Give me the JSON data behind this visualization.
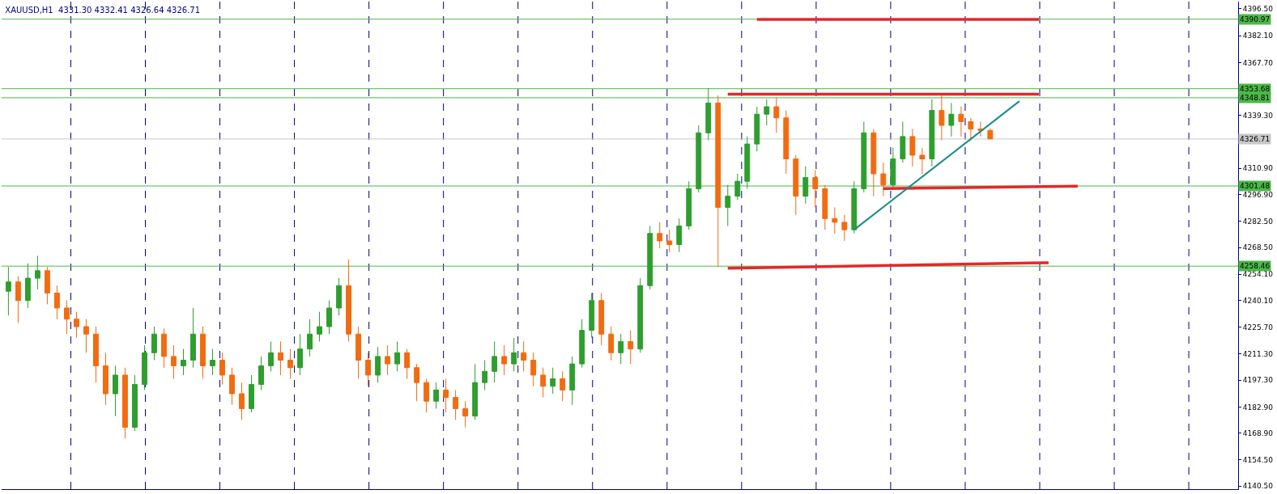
{
  "chart_data": {
    "type": "candlestick",
    "title": "XAUUSD,H1  4331.30 4332.41 4326.64 4326.71",
    "categories": [
      null,
      null,
      null,
      null,
      null,
      null,
      null,
      null,
      null,
      null,
      null,
      null,
      null,
      null,
      null,
      null,
      null,
      null,
      null,
      null,
      null,
      null,
      null,
      null,
      null,
      null,
      null,
      null,
      null,
      null,
      null,
      null,
      null,
      null,
      null,
      null,
      null,
      null,
      null,
      null,
      null,
      null,
      null,
      null,
      null,
      null,
      null,
      null,
      null,
      null,
      null,
      null,
      null,
      null,
      null,
      null,
      null,
      null,
      null,
      null,
      null,
      null,
      null,
      null,
      null,
      null,
      null,
      null,
      null,
      null,
      null,
      null,
      null,
      null,
      null,
      null,
      null,
      null,
      null,
      null,
      null,
      null,
      null,
      null,
      null,
      null,
      null,
      null,
      null,
      null,
      null,
      null,
      null,
      null,
      null,
      null,
      null,
      null,
      null,
      null,
      null,
      null,
      null,
      null,
      null,
      null,
      null,
      null,
      null,
      null,
      null,
      null,
      null,
      null,
      null,
      null,
      null,
      null,
      null,
      null,
      null,
      null,
      null,
      null,
      null,
      null,
      null
    ],
    "ohlc": [
      [
        4245,
        4258,
        4232,
        4250
      ],
      [
        4250,
        4253,
        4228,
        4240
      ],
      [
        4240,
        4260,
        4236,
        4252
      ],
      [
        4252,
        4264,
        4246,
        4256
      ],
      [
        4256,
        4258,
        4238,
        4244
      ],
      [
        4244,
        4248,
        4230,
        4236
      ],
      [
        4236,
        4240,
        4222,
        4230
      ],
      [
        4230,
        4234,
        4220,
        4226
      ],
      [
        4226,
        4230,
        4212,
        4222
      ],
      [
        4222,
        4226,
        4196,
        4205
      ],
      [
        4205,
        4212,
        4184,
        4190
      ],
      [
        4190,
        4205,
        4178,
        4200
      ],
      [
        4200,
        4204,
        4166,
        4172
      ],
      [
        4172,
        4200,
        4170,
        4195
      ],
      [
        4195,
        4216,
        4192,
        4212
      ],
      [
        4212,
        4226,
        4208,
        4222
      ],
      [
        4222,
        4225,
        4204,
        4210
      ],
      [
        4210,
        4216,
        4198,
        4205
      ],
      [
        4205,
        4214,
        4200,
        4208
      ],
      [
        4208,
        4236,
        4204,
        4222
      ],
      [
        4222,
        4226,
        4198,
        4205
      ],
      [
        4205,
        4214,
        4200,
        4208
      ],
      [
        4208,
        4212,
        4195,
        4200
      ],
      [
        4200,
        4204,
        4184,
        4190
      ],
      [
        4190,
        4196,
        4176,
        4182
      ],
      [
        4182,
        4200,
        4180,
        4195
      ],
      [
        4195,
        4210,
        4192,
        4205
      ],
      [
        4205,
        4218,
        4202,
        4212
      ],
      [
        4212,
        4218,
        4200,
        4208
      ],
      [
        4208,
        4214,
        4198,
        4204
      ],
      [
        4204,
        4222,
        4200,
        4214
      ],
      [
        4214,
        4230,
        4210,
        4222
      ],
      [
        4222,
        4234,
        4218,
        4226
      ],
      [
        4226,
        4240,
        4222,
        4236
      ],
      [
        4236,
        4252,
        4232,
        4248
      ],
      [
        4248,
        4262,
        4218,
        4222
      ],
      [
        4222,
        4226,
        4198,
        4208
      ],
      [
        4208,
        4212,
        4194,
        4200
      ],
      [
        4200,
        4215,
        4196,
        4210
      ],
      [
        4210,
        4216,
        4200,
        4206
      ],
      [
        4206,
        4218,
        4202,
        4212
      ],
      [
        4212,
        4214,
        4198,
        4204
      ],
      [
        4204,
        4206,
        4186,
        4196
      ],
      [
        4196,
        4198,
        4180,
        4186
      ],
      [
        4186,
        4196,
        4182,
        4192
      ],
      [
        4192,
        4198,
        4180,
        4188
      ],
      [
        4188,
        4192,
        4176,
        4182
      ],
      [
        4182,
        4186,
        4172,
        4178
      ],
      [
        4178,
        4206,
        4176,
        4196
      ],
      [
        4196,
        4208,
        4192,
        4202
      ],
      [
        4202,
        4218,
        4196,
        4210
      ],
      [
        4210,
        4216,
        4200,
        4206
      ],
      [
        4206,
        4220,
        4202,
        4212
      ],
      [
        4212,
        4218,
        4202,
        4208
      ],
      [
        4208,
        4212,
        4194,
        4200
      ],
      [
        4200,
        4204,
        4188,
        4194
      ],
      [
        4194,
        4204,
        4190,
        4198
      ],
      [
        4198,
        4202,
        4186,
        4192
      ],
      [
        4192,
        4210,
        4184,
        4206
      ],
      [
        4206,
        4230,
        4204,
        4224
      ],
      [
        4224,
        4244,
        4220,
        4240
      ],
      [
        4240,
        4244,
        4216,
        4222
      ],
      [
        4222,
        4226,
        4208,
        4212
      ],
      [
        4212,
        4222,
        4206,
        4218
      ],
      [
        4218,
        4224,
        4206,
        4214
      ],
      [
        4214,
        4252,
        4212,
        4248
      ],
      [
        4248,
        4280,
        4246,
        4276
      ],
      [
        4276,
        4282,
        4268,
        4272
      ],
      [
        4272,
        4278,
        4266,
        4270
      ],
      [
        4270,
        4284,
        4266,
        4280
      ],
      [
        4280,
        4304,
        4278,
        4300
      ],
      [
        4300,
        4334,
        4298,
        4330
      ],
      [
        4330,
        4354,
        4326,
        4346
      ],
      [
        4346,
        4350,
        4258,
        4290
      ],
      [
        4290,
        4302,
        4280,
        4296
      ],
      [
        4296,
        4308,
        4294,
        4304
      ],
      [
        4304,
        4328,
        4300,
        4324
      ],
      [
        4324,
        4344,
        4320,
        4340
      ],
      [
        4340,
        4348,
        4334,
        4344
      ],
      [
        4344,
        4349,
        4330,
        4338
      ],
      [
        4338,
        4342,
        4308,
        4316
      ],
      [
        4316,
        4318,
        4286,
        4296
      ],
      [
        4296,
        4312,
        4292,
        4306
      ],
      [
        4306,
        4310,
        4290,
        4300
      ],
      [
        4300,
        4302,
        4278,
        4284
      ],
      [
        4284,
        4290,
        4276,
        4282
      ],
      [
        4282,
        4286,
        4272,
        4278
      ],
      [
        4278,
        4304,
        4276,
        4300
      ],
      [
        4300,
        4336,
        4298,
        4330
      ],
      [
        4330,
        4332,
        4296,
        4308
      ],
      [
        4308,
        4314,
        4296,
        4302
      ],
      [
        4302,
        4322,
        4300,
        4316
      ],
      [
        4316,
        4336,
        4314,
        4328
      ],
      [
        4328,
        4332,
        4312,
        4318
      ],
      [
        4318,
        4322,
        4308,
        4316
      ],
      [
        4316,
        4348,
        4312,
        4342
      ],
      [
        4342,
        4350,
        4326,
        4334
      ],
      [
        4334,
        4346,
        4328,
        4340
      ],
      [
        4340,
        4344,
        4328,
        4336
      ],
      [
        4336,
        4338,
        4326,
        4332
      ],
      [
        4332,
        4336,
        4328,
        4331.3
      ],
      [
        4331.3,
        4332.41,
        4326.64,
        4326.71
      ],
      null,
      null,
      null,
      null,
      null,
      null,
      null,
      null,
      null,
      null,
      null,
      null,
      null,
      null,
      null,
      null,
      null,
      null,
      null,
      null,
      null,
      null,
      null,
      null,
      null
    ],
    "series": [
      {
        "type": "line",
        "color": "#e8262a",
        "values": [
          null,
          null,
          null,
          null,
          null,
          null,
          null,
          null,
          null,
          null,
          null,
          null,
          null,
          null,
          null,
          null,
          null,
          null,
          null,
          null,
          null,
          null,
          null,
          null,
          null,
          null,
          null,
          null,
          null,
          null,
          null,
          null,
          null,
          null,
          null,
          null,
          null,
          null,
          null,
          null,
          null,
          null,
          null,
          null,
          null,
          null,
          null,
          null,
          null,
          null,
          null,
          null,
          null,
          null,
          null,
          null,
          null,
          null,
          null,
          null,
          null,
          null,
          null,
          null,
          null,
          null,
          null,
          null,
          null,
          null,
          null,
          null,
          null,
          null,
          null,
          null,
          null,
          4390.9,
          null,
          null,
          null,
          null,
          null,
          null,
          null,
          null,
          null,
          null,
          null,
          null,
          null,
          null,
          null,
          null,
          null,
          null,
          null,
          null,
          null,
          null,
          null,
          null,
          null,
          null,
          null,
          null,
          4390.9,
          null,
          null,
          null,
          null,
          null,
          null,
          null,
          null,
          null,
          null,
          null,
          null,
          null,
          null,
          null,
          null,
          null,
          null,
          null,
          null
        ]
      },
      {
        "type": "line",
        "color": "#e8262a",
        "values": [
          null,
          null,
          null,
          null,
          null,
          null,
          null,
          null,
          null,
          null,
          null,
          null,
          null,
          null,
          null,
          null,
          null,
          null,
          null,
          null,
          null,
          null,
          null,
          null,
          null,
          null,
          null,
          null,
          null,
          null,
          null,
          null,
          null,
          null,
          null,
          null,
          null,
          null,
          null,
          null,
          null,
          null,
          null,
          null,
          null,
          null,
          null,
          null,
          null,
          null,
          null,
          null,
          null,
          null,
          null,
          null,
          null,
          null,
          null,
          null,
          null,
          null,
          null,
          null,
          null,
          null,
          null,
          null,
          null,
          null,
          null,
          null,
          null,
          null,
          4350.7,
          null,
          null,
          null,
          null,
          null,
          null,
          null,
          null,
          null,
          null,
          null,
          null,
          null,
          null,
          null,
          null,
          null,
          null,
          null,
          null,
          null,
          null,
          null,
          null,
          null,
          null,
          null,
          null,
          null,
          null,
          null,
          4350.7,
          null,
          null,
          null,
          null,
          null,
          null,
          null,
          null,
          null,
          null,
          null,
          null,
          null,
          null,
          null,
          null,
          null,
          null,
          null,
          null
        ]
      },
      {
        "type": "line",
        "color": "#e8262a",
        "values": [
          null,
          null,
          null,
          null,
          null,
          null,
          null,
          null,
          null,
          null,
          null,
          null,
          null,
          null,
          null,
          null,
          null,
          null,
          null,
          null,
          null,
          null,
          null,
          null,
          null,
          null,
          null,
          null,
          null,
          null,
          null,
          null,
          null,
          null,
          null,
          null,
          null,
          null,
          null,
          null,
          null,
          null,
          null,
          null,
          null,
          null,
          null,
          null,
          null,
          null,
          null,
          null,
          null,
          null,
          null,
          null,
          null,
          null,
          null,
          null,
          null,
          null,
          null,
          null,
          null,
          null,
          null,
          null,
          null,
          null,
          null,
          null,
          null,
          null,
          null,
          null,
          null,
          null,
          null,
          null,
          null,
          null,
          null,
          null,
          null,
          null,
          null,
          null,
          null,
          null,
          4300.1,
          null,
          null,
          null,
          null,
          null,
          null,
          null,
          null,
          null,
          null,
          null,
          null,
          null,
          null,
          null,
          null,
          null,
          null,
          null,
          4301.4,
          null,
          null,
          null,
          null,
          null,
          null,
          null,
          null,
          null,
          null,
          null,
          null,
          null,
          null,
          null,
          null
        ]
      },
      {
        "type": "line",
        "color": "#e8262a",
        "values": [
          null,
          null,
          null,
          null,
          null,
          null,
          null,
          null,
          null,
          null,
          null,
          null,
          null,
          null,
          null,
          null,
          null,
          null,
          null,
          null,
          null,
          null,
          null,
          null,
          null,
          null,
          null,
          null,
          null,
          null,
          null,
          null,
          null,
          null,
          null,
          null,
          null,
          null,
          null,
          null,
          null,
          null,
          null,
          null,
          null,
          null,
          null,
          null,
          null,
          null,
          null,
          null,
          null,
          null,
          null,
          null,
          null,
          null,
          null,
          null,
          null,
          null,
          null,
          null,
          null,
          null,
          null,
          null,
          null,
          null,
          null,
          null,
          null,
          null,
          4257.3,
          null,
          null,
          null,
          null,
          null,
          null,
          null,
          null,
          null,
          null,
          null,
          null,
          null,
          null,
          null,
          null,
          null,
          null,
          null,
          null,
          null,
          null,
          null,
          null,
          null,
          null,
          null,
          null,
          null,
          null,
          null,
          null,
          4260.3,
          null,
          null,
          null,
          null,
          null,
          null,
          null,
          null,
          null,
          null,
          null,
          null,
          null,
          null,
          null,
          null,
          null,
          null,
          null
        ]
      },
      {
        "type": "line",
        "color": "#1a8a8a",
        "values": [
          null,
          null,
          null,
          null,
          null,
          null,
          null,
          null,
          null,
          null,
          null,
          null,
          null,
          null,
          null,
          null,
          null,
          null,
          null,
          null,
          null,
          null,
          null,
          null,
          null,
          null,
          null,
          null,
          null,
          null,
          null,
          null,
          null,
          null,
          null,
          null,
          null,
          null,
          null,
          null,
          null,
          null,
          null,
          null,
          null,
          null,
          null,
          null,
          null,
          null,
          null,
          null,
          null,
          null,
          null,
          null,
          null,
          null,
          null,
          null,
          null,
          null,
          null,
          null,
          null,
          null,
          null,
          null,
          null,
          null,
          null,
          null,
          null,
          null,
          null,
          null,
          null,
          null,
          null,
          null,
          null,
          null,
          null,
          null,
          null,
          null,
          null,
          4278,
          null,
          null,
          null,
          null,
          null,
          null,
          null,
          null,
          null,
          null,
          null,
          null,
          null,
          null,
          null,
          null,
          4347,
          null,
          null,
          null,
          null,
          null,
          null,
          null,
          null,
          null,
          null,
          null,
          null,
          null,
          null,
          null,
          null,
          null,
          null,
          null,
          null,
          null,
          null
        ]
      }
    ],
    "ref_lines": [
      {
        "axis": "y",
        "value": 4390.97,
        "label": "4390.97",
        "color": "#4cb848"
      },
      {
        "axis": "y",
        "value": 4353.68,
        "label": "4353.68",
        "color": "#4cb848"
      },
      {
        "axis": "y",
        "value": 4348.81,
        "label": "4348.81",
        "color": "#4cb848"
      },
      {
        "axis": "y",
        "value": 4326.71,
        "label": "4326.71",
        "color": "#c8c8c8"
      },
      {
        "axis": "y",
        "value": 4301.48,
        "label": "4301.48",
        "color": "#4cb848"
      },
      {
        "axis": "y",
        "value": 4258.46,
        "label": "4258.46",
        "color": "#4cb848"
      }
    ],
    "ylim": [
      4138.8,
      4400.4
    ],
    "yticks": [
      {
        "value": 4396.5,
        "label": "4396.50"
      },
      {
        "value": 4382.1,
        "label": "4382.10"
      },
      {
        "value": 4367.7,
        "label": "4367.70"
      },
      {
        "value": 4339.3,
        "label": "4339.30"
      },
      {
        "value": 4310.9,
        "label": "4310.90"
      },
      {
        "value": 4296.9,
        "label": "4296.90"
      },
      {
        "value": 4282.5,
        "label": "4282.50"
      },
      {
        "value": 4268.5,
        "label": "4268.50"
      },
      {
        "value": 4254.1,
        "label": "4254.10"
      },
      {
        "value": 4240.1,
        "label": "4240.10"
      },
      {
        "value": 4225.7,
        "label": "4225.70"
      },
      {
        "value": 4211.3,
        "label": "4211.30"
      },
      {
        "value": 4197.3,
        "label": "4197.30"
      },
      {
        "value": 4182.9,
        "label": "4182.90"
      },
      {
        "value": 4168.9,
        "label": "4168.90"
      },
      {
        "value": 4154.5,
        "label": "4154.50"
      },
      {
        "value": 4140.5,
        "label": "4140.50"
      }
    ],
    "tick_labels": "y"
  }
}
